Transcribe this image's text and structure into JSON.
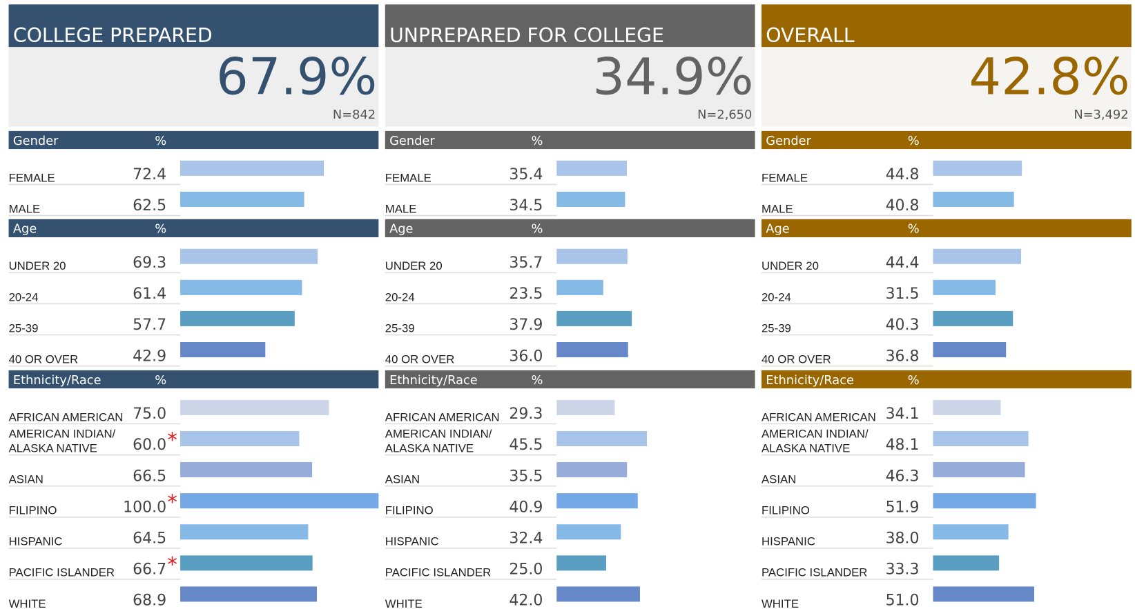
{
  "chart_data": [
    {
      "type": "bar",
      "orientation": "horizontal",
      "title": "COLLEGE PREPARED",
      "color": "#34526f",
      "box_color": "#eeeeee",
      "overall": {
        "value": 67.9,
        "label": "67.9%"
      },
      "n_label": "N=842",
      "xlim": [
        0,
        100
      ],
      "flag_symbol": "*",
      "groups": [
        {
          "name": "Gender",
          "value_header": "%",
          "categories": [
            "FEMALE",
            "MALE"
          ],
          "values": [
            72.4,
            62.5
          ],
          "flags": [
            false,
            false
          ],
          "colors": [
            "#a8c4e8",
            "#85b9e6"
          ]
        },
        {
          "name": "Age",
          "value_header": "%",
          "categories": [
            "UNDER 20",
            "20-24",
            "25-39",
            "40 OR OVER"
          ],
          "values": [
            69.3,
            61.4,
            57.7,
            42.9
          ],
          "flags": [
            false,
            false,
            false,
            false
          ],
          "colors": [
            "#a8c4e8",
            "#85b9e6",
            "#5a9fc2",
            "#6688c8"
          ]
        },
        {
          "name": "Ethnicity/Race",
          "value_header": "%",
          "categories": [
            "AFRICAN AMERICAN",
            "AMERICAN INDIAN/\nALASKA NATIVE",
            "ASIAN",
            "FILIPINO",
            "HISPANIC",
            "PACIFIC ISLANDER",
            "WHITE"
          ],
          "values": [
            75,
            60,
            66.5,
            100,
            64.5,
            66.7,
            68.9
          ],
          "value_labels": [
            "75.0",
            "60.0",
            "66.5",
            "100.0",
            "64.5",
            "66.7",
            "68.9"
          ],
          "flags": [
            false,
            true,
            false,
            true,
            false,
            true,
            false
          ],
          "colors": [
            "#ccd6e8",
            "#a8c4e8",
            "#98acd9",
            "#74a8e6",
            "#85b9e6",
            "#5a9fc2",
            "#6688c8"
          ]
        }
      ]
    },
    {
      "type": "bar",
      "orientation": "horizontal",
      "title": "UNPREPARED FOR COLLEGE",
      "color": "#636363",
      "box_color": "#eeeeee",
      "overall": {
        "value": 34.9,
        "label": "34.9%"
      },
      "n_label": "N=2,650",
      "xlim": [
        0,
        100
      ],
      "flag_symbol": "*",
      "groups": [
        {
          "name": "Gender",
          "value_header": "%",
          "categories": [
            "FEMALE",
            "MALE"
          ],
          "values": [
            35.4,
            34.5
          ],
          "flags": [
            false,
            false
          ],
          "colors": [
            "#a8c4e8",
            "#85b9e6"
          ]
        },
        {
          "name": "Age",
          "value_header": "%",
          "categories": [
            "UNDER 20",
            "20-24",
            "25-39",
            "40 OR OVER"
          ],
          "values": [
            35.7,
            23.5,
            37.9,
            36
          ],
          "value_labels": [
            "35.7",
            "23.5",
            "37.9",
            "36.0"
          ],
          "flags": [
            false,
            false,
            false,
            false
          ],
          "colors": [
            "#a8c4e8",
            "#85b9e6",
            "#5a9fc2",
            "#6688c8"
          ]
        },
        {
          "name": "Ethnicity/Race",
          "value_header": "%",
          "categories": [
            "AFRICAN AMERICAN",
            "AMERICAN INDIAN/\nALASKA NATIVE",
            "ASIAN",
            "FILIPINO",
            "HISPANIC",
            "PACIFIC ISLANDER",
            "WHITE"
          ],
          "values": [
            29.3,
            45.5,
            35.5,
            40.9,
            32.4,
            25,
            42
          ],
          "value_labels": [
            "29.3",
            "45.5",
            "35.5",
            "40.9",
            "32.4",
            "25.0",
            "42.0"
          ],
          "flags": [
            false,
            false,
            false,
            false,
            false,
            false,
            false
          ],
          "colors": [
            "#ccd6e8",
            "#a8c4e8",
            "#98acd9",
            "#74a8e6",
            "#85b9e6",
            "#5a9fc2",
            "#6688c8"
          ]
        }
      ]
    },
    {
      "type": "bar",
      "orientation": "horizontal",
      "title": "OVERALL",
      "color": "#9a6600",
      "box_color": "#f5f4f0",
      "overall": {
        "value": 42.8,
        "label": "42.8%"
      },
      "n_label": "N=3,492",
      "xlim": [
        0,
        100
      ],
      "flag_symbol": "*",
      "groups": [
        {
          "name": "Gender",
          "value_header": "%",
          "categories": [
            "FEMALE",
            "MALE"
          ],
          "values": [
            44.8,
            40.8
          ],
          "flags": [
            false,
            false
          ],
          "colors": [
            "#a8c4e8",
            "#85b9e6"
          ]
        },
        {
          "name": "Age",
          "value_header": "%",
          "categories": [
            "UNDER 20",
            "20-24",
            "25-39",
            "40 OR OVER"
          ],
          "values": [
            44.4,
            31.5,
            40.3,
            36.8
          ],
          "flags": [
            false,
            false,
            false,
            false
          ],
          "colors": [
            "#a8c4e8",
            "#85b9e6",
            "#5a9fc2",
            "#6688c8"
          ]
        },
        {
          "name": "Ethnicity/Race",
          "value_header": "%",
          "categories": [
            "AFRICAN AMERICAN",
            "AMERICAN INDIAN/\nALASKA NATIVE",
            "ASIAN",
            "FILIPINO",
            "HISPANIC",
            "PACIFIC ISLANDER",
            "WHITE"
          ],
          "values": [
            34.1,
            48.1,
            46.3,
            51.9,
            38,
            33.3,
            51
          ],
          "value_labels": [
            "34.1",
            "48.1",
            "46.3",
            "51.9",
            "38.0",
            "33.3",
            "51.0"
          ],
          "flags": [
            false,
            false,
            false,
            false,
            false,
            false,
            false
          ],
          "colors": [
            "#ccd6e8",
            "#a8c4e8",
            "#98acd9",
            "#74a8e6",
            "#85b9e6",
            "#5a9fc2",
            "#6688c8"
          ]
        }
      ]
    }
  ]
}
